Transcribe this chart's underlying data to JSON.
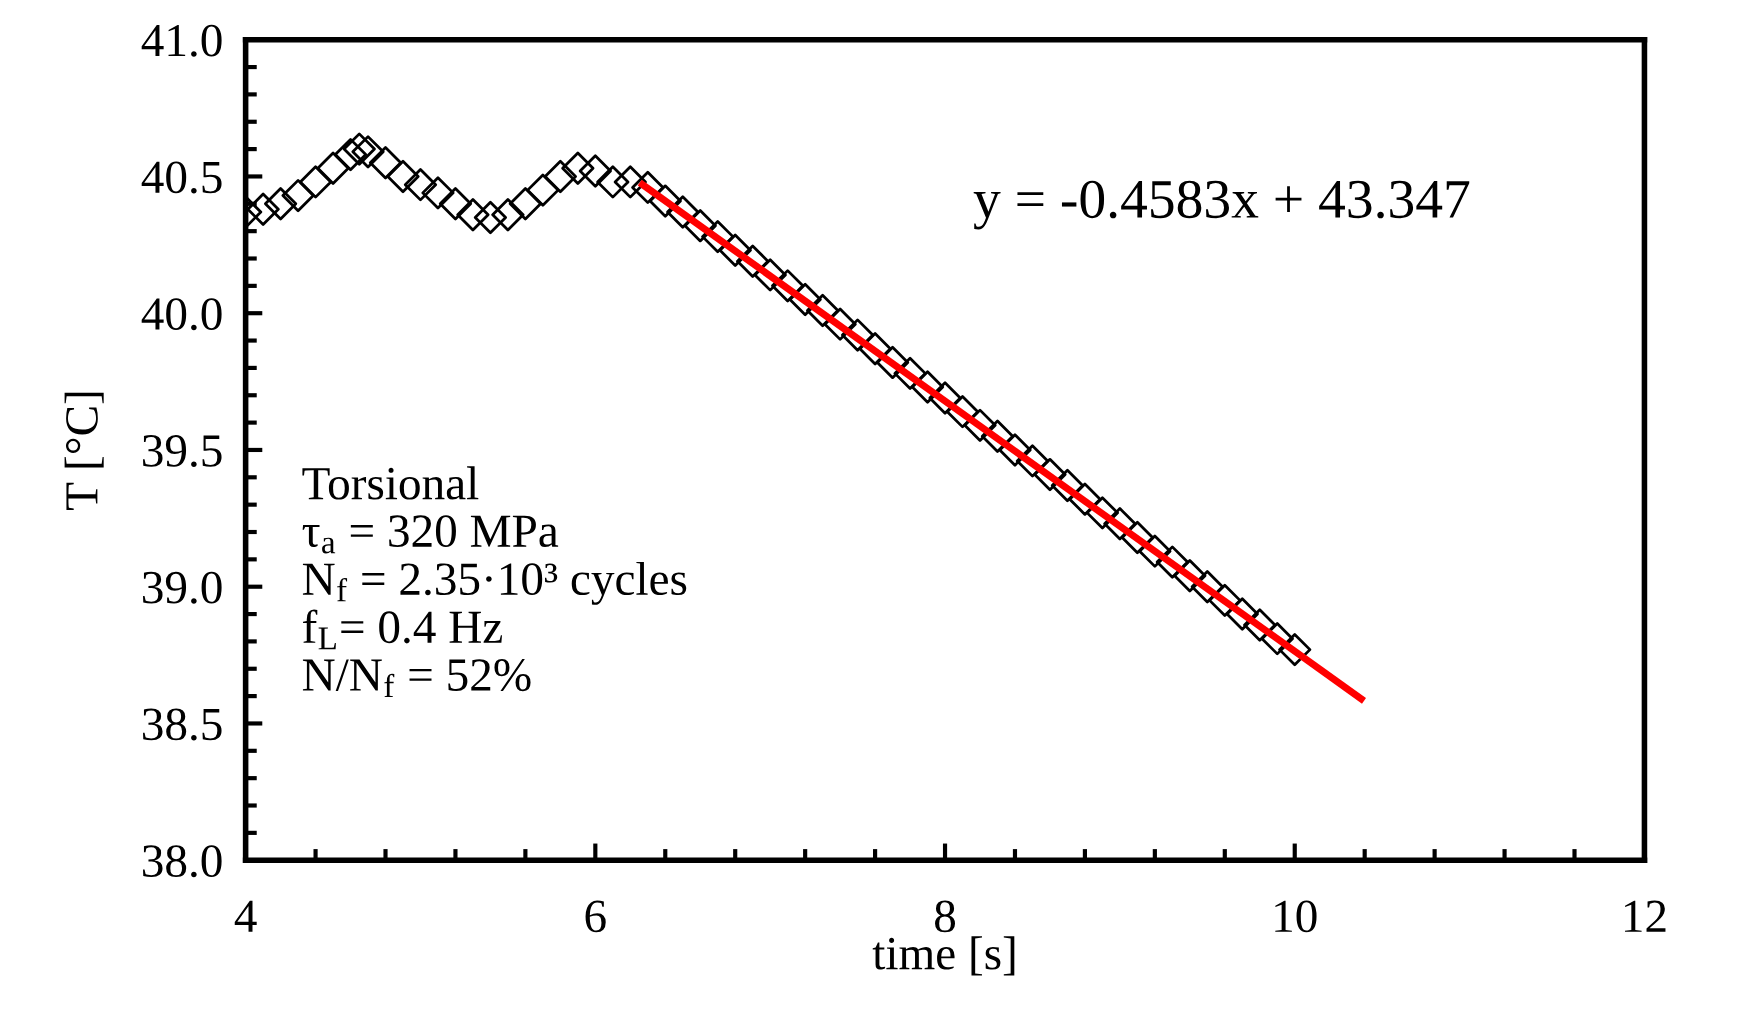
{
  "chart_data": {
    "type": "scatter",
    "xlabel": "time [s]",
    "ylabel": "T [°C]",
    "xlim": [
      4,
      12
    ],
    "xticks": [
      4,
      6,
      8,
      10,
      12
    ],
    "ylim": [
      38.0,
      41.0
    ],
    "yticks": [
      {
        "value": 38.0,
        "label": "38.0"
      },
      {
        "value": 38.5,
        "label": "38.5"
      },
      {
        "value": 39.0,
        "label": "39.0"
      },
      {
        "value": 39.5,
        "label": "39.5"
      },
      {
        "value": 40.0,
        "label": "40.0"
      },
      {
        "value": 40.5,
        "label": "40.5"
      },
      {
        "value": 41.0,
        "label": "41.0"
      }
    ],
    "grid": false,
    "legend": false,
    "series": [
      {
        "marker": "diamond",
        "color": "#000000",
        "x": [
          4.0,
          4.1,
          4.2,
          4.3,
          4.4,
          4.5,
          4.6,
          4.65,
          4.7,
          4.8,
          4.9,
          5.0,
          5.1,
          5.2,
          5.3,
          5.4,
          5.5,
          5.6,
          5.7,
          5.8,
          5.9,
          6.0,
          6.1,
          6.2,
          6.3,
          6.4,
          6.5,
          6.6,
          6.7,
          6.8,
          6.9,
          7.0,
          7.1,
          7.2,
          7.3,
          7.4,
          7.5,
          7.6,
          7.7,
          7.8,
          7.9,
          8.0,
          8.1,
          8.2,
          8.3,
          8.4,
          8.5,
          8.6,
          8.7,
          8.8,
          8.9,
          9.0,
          9.1,
          9.2,
          9.3,
          9.4,
          9.5,
          9.6,
          9.7,
          9.8,
          9.9,
          10.0
        ],
        "values": [
          40.37,
          40.38,
          40.4,
          40.43,
          40.48,
          40.53,
          40.58,
          40.6,
          40.59,
          40.55,
          40.5,
          40.47,
          40.44,
          40.4,
          40.36,
          40.35,
          40.36,
          40.4,
          40.45,
          40.5,
          40.53,
          40.52,
          40.48,
          40.48,
          40.46,
          40.41,
          40.37,
          40.32,
          40.28,
          40.23,
          40.19,
          40.14,
          40.1,
          40.05,
          40.01,
          39.96,
          39.92,
          39.87,
          39.82,
          39.78,
          39.73,
          39.69,
          39.64,
          39.59,
          39.55,
          39.5,
          39.46,
          39.41,
          39.37,
          39.32,
          39.27,
          39.23,
          39.18,
          39.13,
          39.09,
          39.04,
          39.0,
          38.95,
          38.9,
          38.86,
          38.81,
          38.77
        ]
      },
      {
        "type": "line",
        "color": "#ff0000",
        "line_style": "solid",
        "marker": "none",
        "x": [
          6.27,
          10.38
        ],
        "values": [
          40.47,
          38.59
        ]
      }
    ],
    "annotations": [
      "y = -0.4583x + 43.347",
      "Torsional\nτ$_{a}$ = 320 MPa\nN$_{f}$ = 2.35·10³ cycles\nf$_{L}$= 0.4 Hz\nN/N$_{f}$ = 52%"
    ]
  }
}
